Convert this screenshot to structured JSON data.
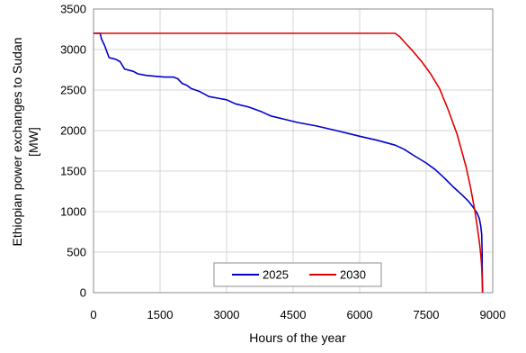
{
  "chart_data": {
    "type": "line",
    "xlabel": "Hours of the year",
    "ylabel_lines": [
      "Ethiopian power  exchanges to Sudan",
      "[MW]"
    ],
    "xlim": [
      0,
      9000
    ],
    "ylim": [
      0,
      3500
    ],
    "xticks": [
      0,
      1500,
      3000,
      4500,
      6000,
      7500,
      9000
    ],
    "yticks": [
      0,
      500,
      1000,
      1500,
      2000,
      2500,
      3000,
      3500
    ],
    "grid": true,
    "legend_position": "bottom-center",
    "series": [
      {
        "name": "2025",
        "color": "#0000cc",
        "x": [
          0,
          150,
          180,
          250,
          350,
          500,
          600,
          700,
          900,
          1000,
          1200,
          1400,
          1600,
          1800,
          1900,
          2000,
          2100,
          2200,
          2400,
          2600,
          2800,
          3000,
          3200,
          3500,
          3800,
          4000,
          4300,
          4600,
          5000,
          5400,
          5700,
          6000,
          6400,
          6800,
          7000,
          7200,
          7500,
          7700,
          7900,
          8100,
          8300,
          8450,
          8550,
          8650,
          8700,
          8730,
          8750,
          8760,
          8765,
          8770
        ],
        "y": [
          3200,
          3200,
          3130,
          3050,
          2900,
          2880,
          2850,
          2760,
          2730,
          2700,
          2680,
          2670,
          2660,
          2660,
          2640,
          2580,
          2560,
          2520,
          2480,
          2420,
          2400,
          2380,
          2330,
          2290,
          2230,
          2180,
          2140,
          2100,
          2060,
          2010,
          1970,
          1930,
          1880,
          1820,
          1770,
          1700,
          1600,
          1520,
          1420,
          1310,
          1210,
          1130,
          1060,
          980,
          910,
          820,
          720,
          500,
          200,
          0
        ]
      },
      {
        "name": "2030",
        "color": "#e00000",
        "x": [
          0,
          6800,
          6900,
          7000,
          7200,
          7400,
          7600,
          7800,
          8000,
          8200,
          8400,
          8500,
          8600,
          8650,
          8700,
          8730,
          8750,
          8760,
          8765,
          8770
        ],
        "y": [
          3200,
          3200,
          3160,
          3100,
          2980,
          2850,
          2700,
          2520,
          2250,
          1950,
          1550,
          1300,
          1000,
          820,
          620,
          470,
          320,
          180,
          80,
          0
        ]
      }
    ]
  }
}
